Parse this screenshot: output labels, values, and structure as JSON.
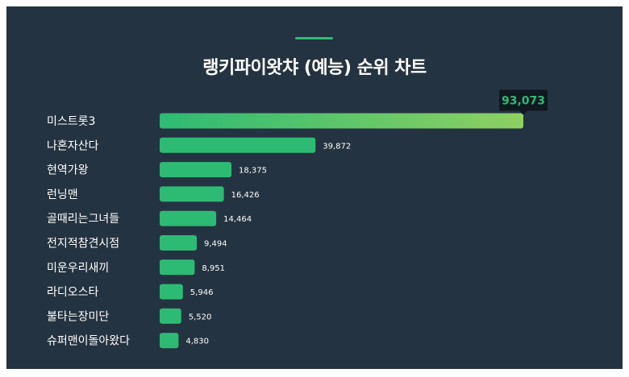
{
  "title": "랭키파이왓챠 (예능) 순위 차트",
  "colors": {
    "background": "#243341",
    "bar": "#2dbb74",
    "bar_top_gradient_end": "#8fd061",
    "callout_bg": "#101820",
    "text": "#ffffff"
  },
  "chart_data": {
    "type": "bar",
    "orientation": "horizontal",
    "title": "랭키파이왓챠 (예능) 순위 차트",
    "xlabel": "",
    "ylabel": "",
    "grid": false,
    "legend": "none",
    "categories": [
      "미스트롯3",
      "나혼자산다",
      "현역가왕",
      "런닝맨",
      "골때리는그녀들",
      "전지적참견시점",
      "미운우리새끼",
      "라디오스타",
      "불타는장미단",
      "슈퍼맨이돌아왔다"
    ],
    "values": [
      93073,
      39872,
      18375,
      16426,
      14464,
      9494,
      8951,
      5946,
      5520,
      4830
    ],
    "value_labels": [
      "93,073",
      "39,872",
      "18,375",
      "16,426",
      "14,464",
      "9,494",
      "8,951",
      "5,946",
      "5,520",
      "4,830"
    ],
    "xlim": [
      0,
      93073
    ]
  }
}
